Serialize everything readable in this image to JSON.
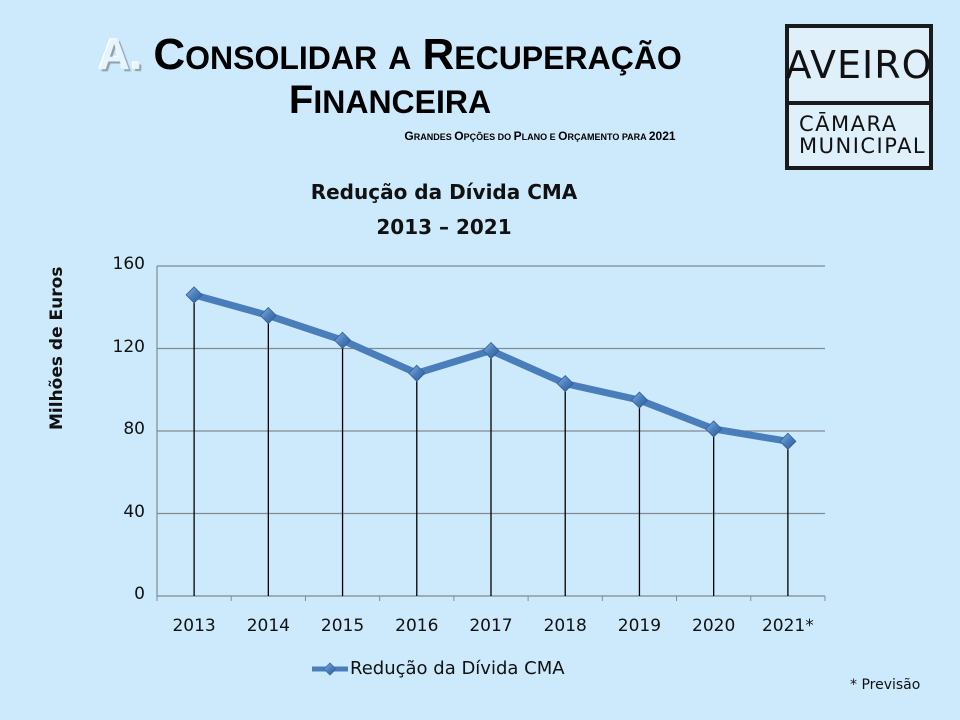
{
  "header": {
    "title_letter": "A.",
    "title_line1_words": [
      {
        "cap": "C",
        "rest": "ONSOLIDAR"
      },
      {
        "cap": "",
        "rest": "A"
      },
      {
        "cap": "R",
        "rest": "ECUPERAÇÃO"
      }
    ],
    "title_line2": {
      "cap": "F",
      "rest": "INANCEIRA"
    },
    "subtitle_parts": [
      {
        "cap": "G",
        "rest": "RANDES "
      },
      {
        "cap": "O",
        "rest": "PÇÕES DO "
      },
      {
        "cap": "P",
        "rest": "LANO E "
      },
      {
        "cap": "O",
        "rest": "RÇAMENTO PARA "
      },
      {
        "cap": "2021",
        "rest": ""
      }
    ]
  },
  "logo": {
    "top": "AVEIRO",
    "line1": "CĀMARA",
    "line2": "MUNICIPAL"
  },
  "chart_data": {
    "type": "line",
    "title": "Redução da Dívida CMA",
    "subtitle": "2013 – 2021",
    "xlabel": "",
    "ylabel": "Milhões de Euros",
    "categories": [
      "2013",
      "2014",
      "2015",
      "2016",
      "2017",
      "2018",
      "2019",
      "2020",
      "2021*"
    ],
    "series": [
      {
        "name": "Redução da Dívida CMA",
        "values": [
          146,
          136,
          124,
          108,
          119,
          103,
          95,
          81,
          75
        ],
        "color": "#4a7ebb"
      }
    ],
    "ylim": [
      0,
      160
    ],
    "yticks": [
      "0",
      "40",
      "80",
      "120",
      "160"
    ],
    "grid": true,
    "drop_lines": true,
    "legend_position": "bottom",
    "footnote": "* Previsão"
  }
}
